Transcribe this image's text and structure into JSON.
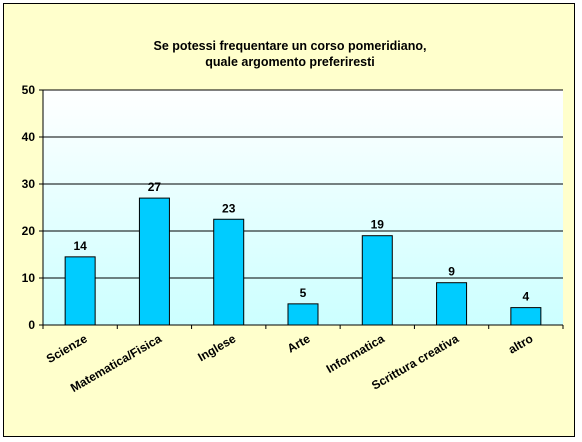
{
  "chart_data": {
    "type": "bar",
    "title_lines": [
      "Se potessi  frequentare un corso  pomeridiano,",
      "quale argomento preferiresti"
    ],
    "categories": [
      "Scienze",
      "Matematica/Fisica",
      "Inglese",
      "Arte",
      "Informatica",
      "Scrittura creativa",
      "altro"
    ],
    "values": [
      14,
      27,
      23,
      5,
      19,
      9,
      4
    ],
    "bar_heights": [
      14.5,
      27,
      22.5,
      4.5,
      19,
      9,
      3.7
    ],
    "xlabel": "",
    "ylabel": "",
    "ylim": [
      0,
      50
    ],
    "yticks": [
      0,
      10,
      20,
      30,
      40,
      50
    ],
    "grid": true,
    "legend": "none",
    "colors": {
      "bar_fill": "#00ccff",
      "bar_stroke": "#000000",
      "frame_bg": "#ffffcc",
      "plot_bg_top": "#ffffff",
      "plot_bg_bottom": "#ccffff",
      "gridline": "#000000"
    }
  }
}
